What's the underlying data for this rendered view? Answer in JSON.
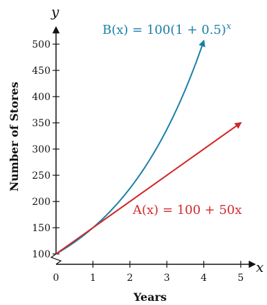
{
  "chart_data": {
    "type": "line",
    "xlabel": "Years",
    "ylabel": "Number of Stores",
    "x_axis_var": "x",
    "y_axis_var": "y",
    "xlim": [
      0,
      5
    ],
    "ylim": [
      100,
      500
    ],
    "x_ticks": [
      "0",
      "1",
      "2",
      "3",
      "4",
      "5"
    ],
    "y_ticks": [
      "100",
      "150",
      "200",
      "250",
      "300",
      "350",
      "400",
      "450",
      "500"
    ],
    "grid": false,
    "series": [
      {
        "name": "B(x) = 100(1 + 0.5)^x",
        "label_parts": [
          "B(x) = 100(1 + 0.5)",
          "x"
        ],
        "color": "#1a7fa6",
        "formula": "exponential",
        "x": [
          0,
          1,
          2,
          3,
          4
        ],
        "values": [
          100,
          150,
          225,
          337.5,
          506.25
        ]
      },
      {
        "name": "A(x) = 100 + 50x",
        "label_parts": [
          "A(x) = 100 + 50x"
        ],
        "color": "#d0282a",
        "formula": "linear",
        "x": [
          0,
          1,
          2,
          3,
          4,
          5
        ],
        "values": [
          100,
          150,
          200,
          250,
          300,
          350
        ]
      }
    ]
  }
}
